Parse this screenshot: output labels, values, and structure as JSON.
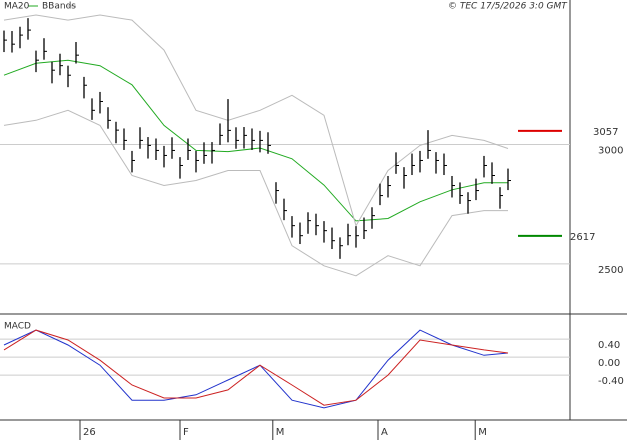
{
  "chart_data": [
    {
      "type": "ohlc",
      "source": "© TEC 17/5/2026 3:0 GMT",
      "xlim": [
        -0.5,
        70.75
      ],
      "ylim": [
        2290,
        3605
      ],
      "yticks": [
        2500,
        3000
      ],
      "grid": true,
      "bar_color": "#000000",
      "high": [
        3477,
        3475,
        3493,
        3529,
        3393,
        3445,
        3346,
        3380,
        3330,
        3429,
        3283,
        3193,
        3220,
        3156,
        3095,
        3067,
        2973,
        3072,
        3031,
        3025,
        2994,
        3030,
        2947,
        3025,
        2973,
        3009,
        3010,
        3088,
        3190,
        3072,
        3073,
        3067,
        3057,
        3051,
        2842,
        2773,
        2700,
        2673,
        2716,
        2710,
        2679,
        2652,
        2611,
        2668,
        2658,
        2694,
        2737,
        2836,
        2868,
        2967,
        2905,
        2962,
        2973,
        3060,
        2968,
        2962,
        2868,
        2841,
        2800,
        2857,
        2952,
        2925,
        2821,
        2899
      ],
      "low": [
        3387,
        3385,
        3403,
        3439,
        3303,
        3355,
        3256,
        3290,
        3240,
        3339,
        3193,
        3103,
        3130,
        3066,
        3005,
        2977,
        2883,
        2982,
        2941,
        2935,
        2904,
        2940,
        2857,
        2935,
        2883,
        2919,
        2920,
        2998,
        3009,
        2982,
        2983,
        2977,
        2967,
        2961,
        2752,
        2683,
        2610,
        2583,
        2626,
        2620,
        2589,
        2562,
        2521,
        2578,
        2568,
        2604,
        2647,
        2746,
        2778,
        2877,
        2815,
        2872,
        2883,
        2940,
        2878,
        2872,
        2778,
        2751,
        2710,
        2767,
        2862,
        2835,
        2731,
        2809
      ],
      "close": [
        3437,
        3420,
        3458,
        3479,
        3353,
        3390,
        3311,
        3330,
        3290,
        3374,
        3248,
        3143,
        3180,
        3101,
        3060,
        3017,
        2933,
        3017,
        2996,
        2975,
        2954,
        2975,
        2912,
        2975,
        2933,
        2954,
        2975,
        3038,
        3059,
        3017,
        3038,
        3017,
        3017,
        2996,
        2807,
        2723,
        2660,
        2618,
        2681,
        2660,
        2639,
        2597,
        2576,
        2618,
        2618,
        2639,
        2702,
        2786,
        2828,
        2912,
        2870,
        2912,
        2933,
        2975,
        2933,
        2912,
        2828,
        2786,
        2765,
        2807,
        2912,
        2870,
        2786,
        2849
      ],
      "overlays": [
        {
          "name": "MA20",
          "color": "#22aa22",
          "x": [
            0,
            4,
            8,
            12,
            16,
            20,
            24,
            28,
            32,
            36,
            40,
            44,
            48,
            52,
            56,
            60,
            63
          ],
          "values": [
            3290,
            3340,
            3353,
            3330,
            3250,
            3080,
            2975,
            2970,
            2985,
            2940,
            2830,
            2680,
            2690,
            2760,
            2810,
            2840,
            2840
          ]
        },
        {
          "name": "BBands",
          "color": "#bbbbbb",
          "x": [
            0,
            4,
            8,
            12,
            16,
            20,
            24,
            28,
            32,
            36,
            40,
            44,
            48,
            52,
            56,
            60,
            63
          ],
          "upper": [
            3521,
            3542,
            3521,
            3542,
            3521,
            3395,
            3143,
            3101,
            3143,
            3206,
            3122,
            2660,
            2891,
            2996,
            3038,
            3017,
            2983
          ],
          "lower": [
            3080,
            3101,
            3143,
            3080,
            2870,
            2828,
            2849,
            2891,
            2891,
            2576,
            2492,
            2450,
            2534,
            2492,
            2702,
            2723,
            2723
          ]
        }
      ],
      "levels": [
        {
          "value": 3057,
          "color": "#dd0000"
        },
        {
          "value": 2617,
          "color": "#008800"
        }
      ]
    },
    {
      "type": "line",
      "title": "MACD",
      "xlim": [
        -0.5,
        70.75
      ],
      "ylim": [
        -1.4,
        0.87
      ],
      "yticks": [
        {
          "value": 0.4,
          "label": "0.40"
        },
        {
          "value": 0,
          "label": "0.00"
        },
        {
          "value": -0.4,
          "label": "-0.40"
        }
      ],
      "xticks": [
        {
          "value": 9.5,
          "label": "26"
        },
        {
          "value": 22,
          "label": "F"
        },
        {
          "value": 33.6,
          "label": "M"
        },
        {
          "value": 46.75,
          "label": "A"
        },
        {
          "value": 58.9,
          "label": "M"
        }
      ],
      "series": [
        {
          "color": "#2233cc",
          "x": [
            0,
            4,
            8,
            12,
            16,
            20,
            24,
            28,
            32,
            36,
            40,
            44,
            48,
            52,
            56,
            60,
            63
          ],
          "values": [
            0.27,
            0.6,
            0.27,
            -0.18,
            -0.96,
            -0.96,
            -0.84,
            -0.51,
            -0.18,
            -0.96,
            -1.13,
            -0.96,
            -0.07,
            0.6,
            0.27,
            0.04,
            0.09
          ]
        },
        {
          "color": "#cc2222",
          "x": [
            0,
            4,
            8,
            12,
            16,
            20,
            24,
            28,
            32,
            36,
            40,
            44,
            48,
            52,
            56,
            60,
            63
          ],
          "values": [
            0.16,
            0.6,
            0.38,
            -0.07,
            -0.62,
            -0.91,
            -0.91,
            -0.73,
            -0.18,
            -0.62,
            -1.07,
            -0.96,
            -0.4,
            0.38,
            0.27,
            0.16,
            0.09
          ]
        }
      ]
    }
  ]
}
